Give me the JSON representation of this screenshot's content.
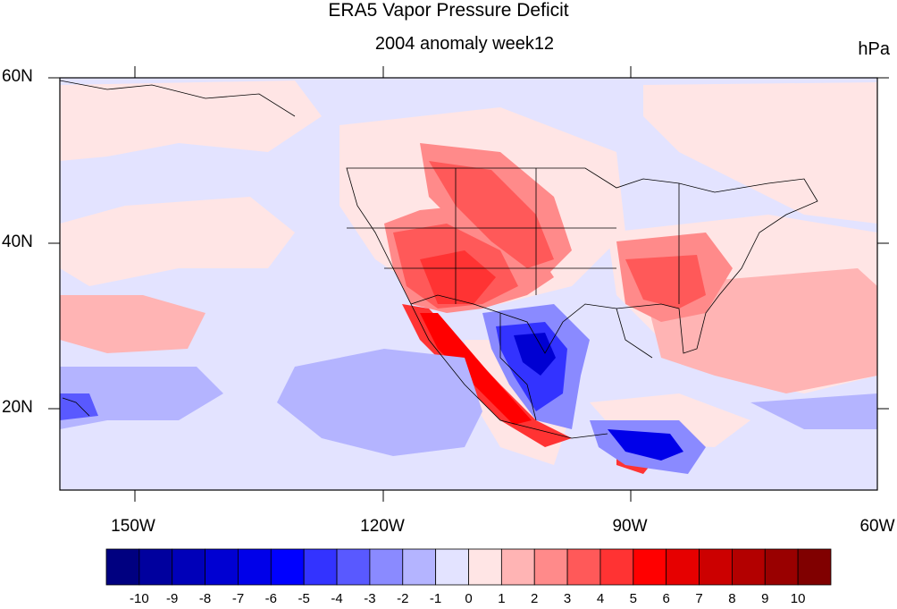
{
  "title": "ERA5 Vapor Pressure Deficit",
  "subtitle": "2004 anomaly week12",
  "units": "hPa",
  "lat_labels": [
    "60N",
    "40N",
    "20N"
  ],
  "lon_labels": [
    "150W",
    "120W",
    "90W",
    "60W"
  ],
  "colorbar": {
    "labels": [
      "-10",
      "-9",
      "-8",
      "-7",
      "-6",
      "-5",
      "-4",
      "-3",
      "-2",
      "-1",
      "0",
      "1",
      "2",
      "3",
      "4",
      "5",
      "6",
      "7",
      "8",
      "9",
      "10"
    ],
    "colors": [
      "#000080",
      "#00009e",
      "#0000b9",
      "#0000d2",
      "#0000e9",
      "#0000ff",
      "#3333ff",
      "#5959ff",
      "#8a8aff",
      "#b4b4ff",
      "#e3e3ff",
      "#ffe5e5",
      "#ffb4b4",
      "#ff8a8a",
      "#ff5959",
      "#ff3333",
      "#ff0000",
      "#e60000",
      "#cc0000",
      "#b30000",
      "#990000",
      "#800000"
    ]
  },
  "colors": {
    "background": "#e3e3ff",
    "positive_anomaly": "#ff3333",
    "negative_anomaly": "#0000e9"
  }
}
